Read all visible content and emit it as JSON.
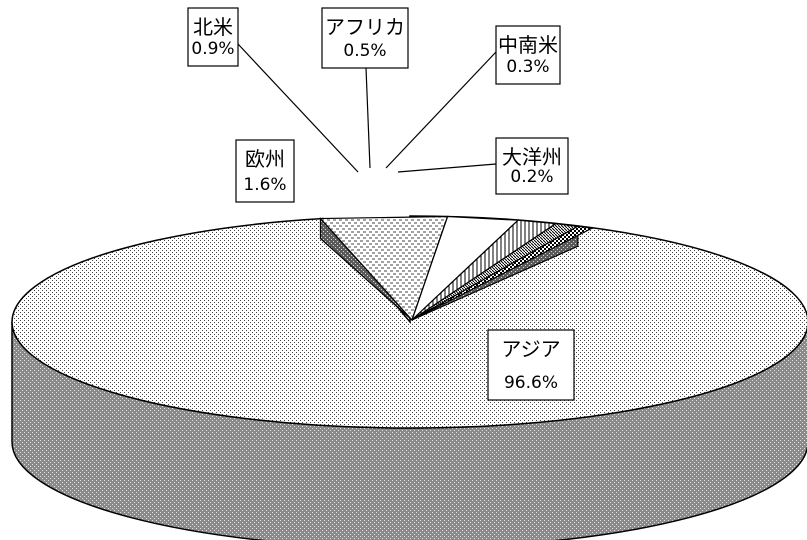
{
  "chart_data": {
    "type": "pie",
    "style": "3d",
    "legend": "none",
    "slices": [
      {
        "label": "アジア",
        "value": 96.6,
        "display": "96.6%",
        "pattern": "dots-light"
      },
      {
        "label": "欧州",
        "value": 1.6,
        "display": "1.6%",
        "pattern": "dots-dark"
      },
      {
        "label": "北米",
        "value": 0.9,
        "display": "0.9%",
        "pattern": "white"
      },
      {
        "label": "アフリカ",
        "value": 0.5,
        "display": "0.5%",
        "pattern": "vertical-lines"
      },
      {
        "label": "中南米",
        "value": 0.3,
        "display": "0.3%",
        "pattern": "dense"
      },
      {
        "label": "大洋州",
        "value": 0.2,
        "display": "0.2%",
        "pattern": "checker"
      }
    ]
  }
}
